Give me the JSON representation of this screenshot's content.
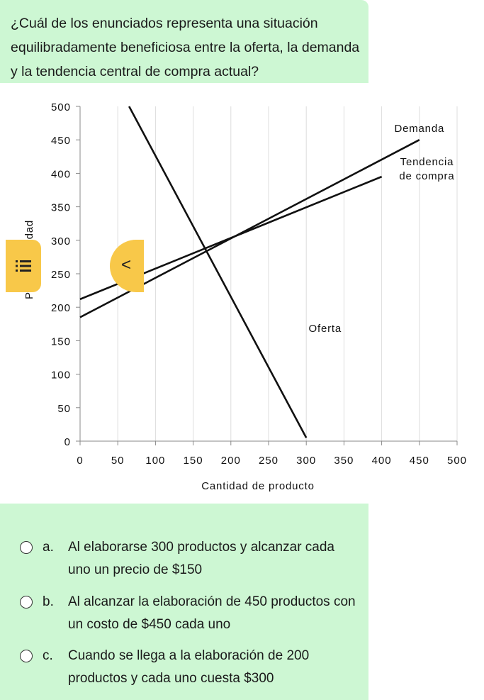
{
  "question": {
    "text": "¿Cuál de los enunciados representa una situación equilibradamente beneficiosa entre la oferta, la demanda y la tendencia central de compra actual?"
  },
  "chart_data": {
    "type": "line",
    "title": "",
    "xlabel": "Cantidad de producto",
    "ylabel": "Precio / unidad",
    "xlim": [
      0,
      500
    ],
    "ylim": [
      0,
      500
    ],
    "xticks": [
      0,
      50,
      100,
      150,
      200,
      250,
      300,
      350,
      400,
      450,
      500
    ],
    "yticks": [
      0,
      50,
      100,
      150,
      200,
      250,
      300,
      350,
      400,
      450,
      500
    ],
    "grid": "vertical",
    "series": [
      {
        "name": "Demanda",
        "x": [
          0,
          450
        ],
        "y": [
          185,
          450
        ]
      },
      {
        "name": "Tendencia de compra",
        "x": [
          0,
          400
        ],
        "y": [
          212,
          395
        ]
      },
      {
        "name": "Oferta",
        "x": [
          65,
          300
        ],
        "y": [
          500,
          5
        ]
      }
    ],
    "annotations": [
      {
        "text": "Demanda",
        "x": 450,
        "y": 462
      },
      {
        "text": "Tendencia",
        "x": 460,
        "y": 412
      },
      {
        "text": "de compra",
        "x": 460,
        "y": 391
      },
      {
        "text": "Oferta",
        "x": 325,
        "y": 163
      }
    ]
  },
  "answers": [
    {
      "letter": "a.",
      "text": "Al elaborarse 300 productos y alcanzar cada uno un precio de $150"
    },
    {
      "letter": "b.",
      "text": "Al alcanzar la elaboración de 450 productos con un costo de $450 cada uno"
    },
    {
      "letter": "c.",
      "text": "Cuando se llega a la elaboración de 200 productos y cada uno cuesta $300"
    }
  ],
  "nav": {
    "prev_icon": "<",
    "menu_icon": "list-icon"
  },
  "colors": {
    "panel": "#cdf7d3",
    "nav_button": "#f8c849",
    "line": "#111111",
    "grid": "#dddddd"
  }
}
